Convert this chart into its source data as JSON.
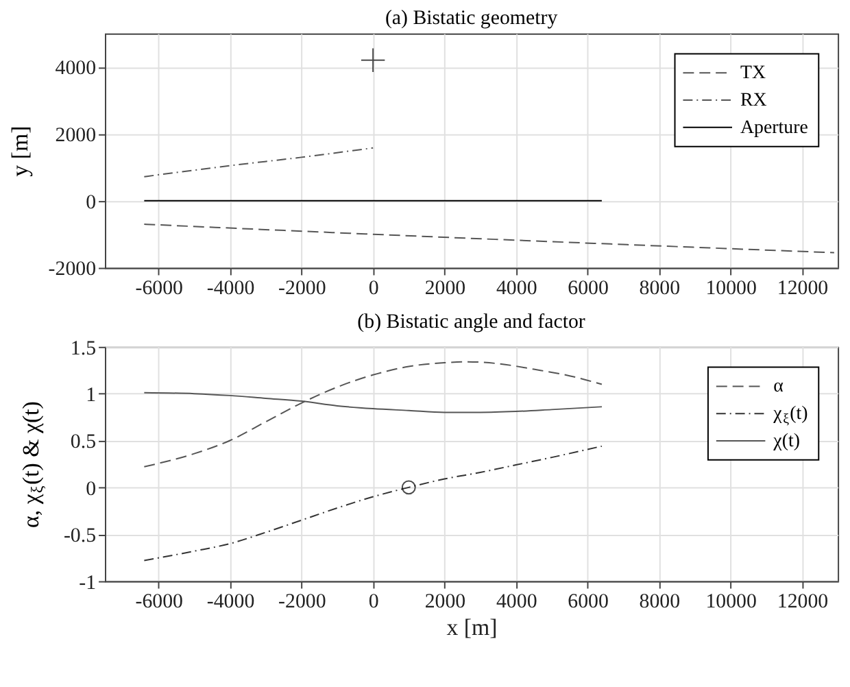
{
  "chart_data": [
    {
      "type": "line",
      "title": "(a) Bistatic geometry",
      "ylabel": "y [m]",
      "xlim": [
        -7500,
        13000
      ],
      "xticks": [
        -6000,
        -4000,
        -2000,
        0,
        2000,
        4000,
        6000,
        8000,
        10000,
        12000
      ],
      "ylim": [
        -2000,
        5000
      ],
      "yticks": [
        -2000,
        0,
        2000,
        4000
      ],
      "grid": true,
      "legend": "top right",
      "series": [
        {
          "name": "TX",
          "color": "#555555",
          "line_style": "dashed",
          "x": [
            -6400,
            0,
            12900
          ],
          "values": [
            -700,
            -1000,
            -1550
          ]
        },
        {
          "name": "RX",
          "color": "#555555",
          "line_style": "dotted",
          "x": [
            -6400,
            -4000,
            -2000,
            0
          ],
          "values": [
            720,
            1050,
            1300,
            1580
          ]
        },
        {
          "name": "Aperture",
          "color": "#000000",
          "line_style": "solid",
          "x": [
            -6400,
            6400
          ],
          "values": [
            0,
            0
          ]
        },
        {
          "type": "scatter",
          "marker": "cross",
          "color": "#000000",
          "x": [
            0
          ],
          "values": [
            4200
          ]
        }
      ]
    },
    {
      "type": "line",
      "title": "(b) Bistatic angle and factor",
      "xlabel": "x [m]",
      "ylabel": "α, χ$_{ξ}$(t) & χ(t)",
      "xlim": [
        -7500,
        13000
      ],
      "xticks": [
        -6000,
        -4000,
        -2000,
        0,
        2000,
        4000,
        6000,
        8000,
        10000,
        12000
      ],
      "ylim": [
        -1,
        1.5
      ],
      "yticks": [
        -1,
        -0.5,
        0,
        0.5,
        1,
        1.5
      ],
      "grid": true,
      "legend": "top right",
      "series": [
        {
          "name": "α",
          "color": "#555555",
          "line_style": "dashed",
          "x": [
            -6400,
            -5000,
            -4000,
            -3000,
            -2000,
            -1000,
            0,
            1000,
            2000,
            2600,
            3500,
            4500,
            5500,
            6400
          ],
          "values": [
            0.22,
            0.36,
            0.5,
            0.7,
            0.9,
            1.07,
            1.2,
            1.29,
            1.33,
            1.34,
            1.32,
            1.26,
            1.19,
            1.1
          ]
        },
        {
          "name": "χ$_{ξ}$(t)",
          "color": "#333333",
          "line_style": "dotted",
          "x": [
            -6400,
            -5000,
            -4000,
            -3000,
            -2000,
            -1000,
            0,
            1000,
            2000,
            3000,
            4000,
            5000,
            6400
          ],
          "values": [
            -0.78,
            -0.68,
            -0.6,
            -0.48,
            -0.35,
            -0.22,
            -0.1,
            0,
            0.09,
            0.16,
            0.24,
            0.32,
            0.44
          ]
        },
        {
          "name": "χ(t)",
          "color": "#555555",
          "line_style": "solid",
          "x": [
            -6400,
            -5000,
            -4000,
            -3000,
            -2000,
            -1000,
            0,
            1000,
            2000,
            3000,
            4000,
            5000,
            6400
          ],
          "values": [
            1.01,
            1.0,
            0.98,
            0.95,
            0.92,
            0.87,
            0.84,
            0.82,
            0.8,
            0.8,
            0.81,
            0.83,
            0.86
          ]
        },
        {
          "type": "scatter",
          "marker": "circle",
          "color": "#000000",
          "x": [
            1000
          ],
          "values": [
            0
          ]
        }
      ]
    }
  ]
}
